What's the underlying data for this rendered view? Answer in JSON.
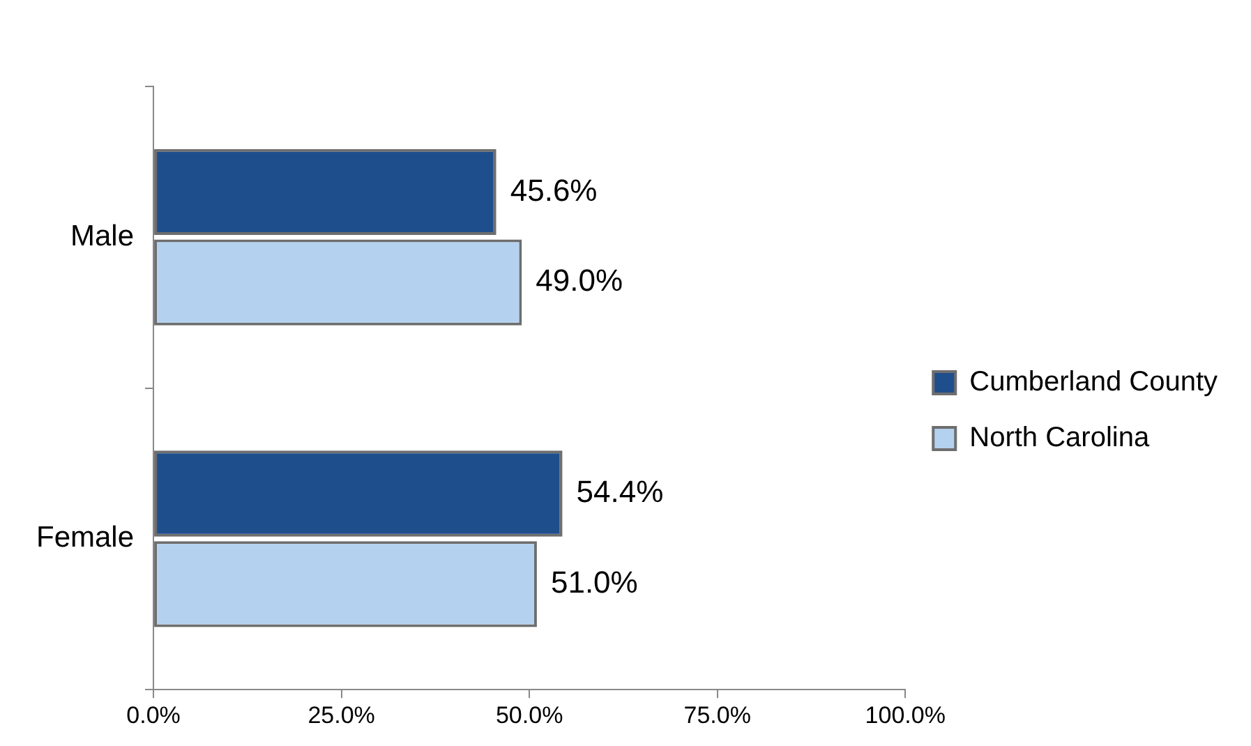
{
  "chart_data": {
    "type": "bar",
    "orientation": "horizontal",
    "categories": [
      "Male",
      "Female"
    ],
    "series": [
      {
        "name": "Cumberland County",
        "color": "#1f4e8c",
        "values": [
          45.6,
          54.4
        ],
        "value_labels": [
          "45.6%",
          "54.4%"
        ]
      },
      {
        "name": "North Carolina",
        "color": "#b4d2f0",
        "values": [
          49.0,
          51.0
        ],
        "value_labels": [
          "49.0%",
          "51.0%"
        ]
      }
    ],
    "xlim": [
      0,
      100
    ],
    "xticks": [
      {
        "value": 0,
        "label": "0.0%"
      },
      {
        "value": 25,
        "label": "25.0%"
      },
      {
        "value": 50,
        "label": "50.0%"
      },
      {
        "value": 75,
        "label": "75.0%"
      },
      {
        "value": 100,
        "label": "100.0%"
      }
    ],
    "grid": false,
    "legend": "right"
  }
}
